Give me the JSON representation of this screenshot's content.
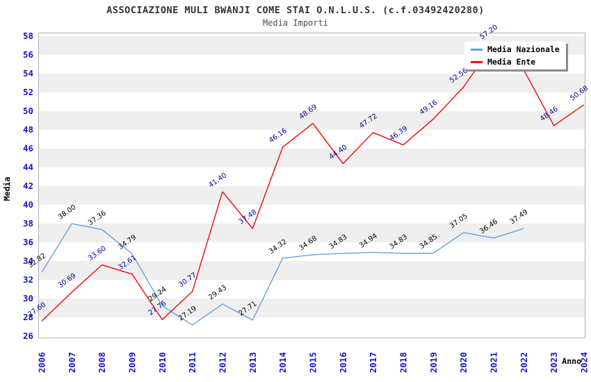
{
  "header": {
    "title": "ASSOCIAZIONE MULI BWANJI COME STAI O.N.L.U.S. (c.f.03492420280)",
    "subtitle": "Media Importi"
  },
  "legend": {
    "items": [
      {
        "label": "Media Nazionale",
        "color": "#64a1e0"
      },
      {
        "label": "Media Ente",
        "color": "#ee0808"
      }
    ]
  },
  "axes": {
    "y_title": "Media",
    "x_title": "Anno",
    "y_ticks": [
      58,
      56,
      54,
      52,
      50,
      48,
      46,
      44,
      42,
      40,
      38,
      36,
      34,
      32,
      30,
      28,
      26
    ],
    "tick_color": "#1414cc"
  },
  "chart_data": {
    "type": "line",
    "title": "ASSOCIAZIONE MULI BWANJI COME STAI O.N.L.U.S. (c.f.03492420280)",
    "subtitle": "Media Importi",
    "xlabel": "Anno",
    "ylabel": "Media",
    "ylim": [
      26,
      58
    ],
    "grid": "alternating-bands",
    "legend_position": "top-right",
    "categories": [
      "2006",
      "2007",
      "2008",
      "2009",
      "2010",
      "2011",
      "2012",
      "2013",
      "2014",
      "2015",
      "2016",
      "2017",
      "2018",
      "2019",
      "2020",
      "2021",
      "2022",
      "2023",
      "2024"
    ],
    "series": [
      {
        "name": "Media Nazionale",
        "color": "#64a1e0",
        "label_color": "#000000",
        "values": [
          32.82,
          38.0,
          37.36,
          34.79,
          29.24,
          27.19,
          29.43,
          27.71,
          34.32,
          34.68,
          34.83,
          34.94,
          34.83,
          34.85,
          37.05,
          36.46,
          37.49,
          null,
          null
        ]
      },
      {
        "name": "Media Ente",
        "color": "#ee0808",
        "label_color": "#000099",
        "values": [
          27.6,
          30.69,
          33.6,
          32.61,
          27.76,
          30.77,
          41.4,
          37.48,
          46.16,
          48.69,
          44.4,
          47.72,
          46.39,
          49.16,
          52.56,
          57.2,
          54.4,
          48.46,
          50.68
        ]
      }
    ],
    "band_fill": "#efefef",
    "band_pairs_gray": [
      [
        28,
        30
      ],
      [
        32,
        34
      ],
      [
        36,
        38
      ],
      [
        40,
        42
      ],
      [
        44,
        46
      ],
      [
        48,
        50
      ],
      [
        52,
        54
      ],
      [
        56,
        58
      ]
    ]
  }
}
